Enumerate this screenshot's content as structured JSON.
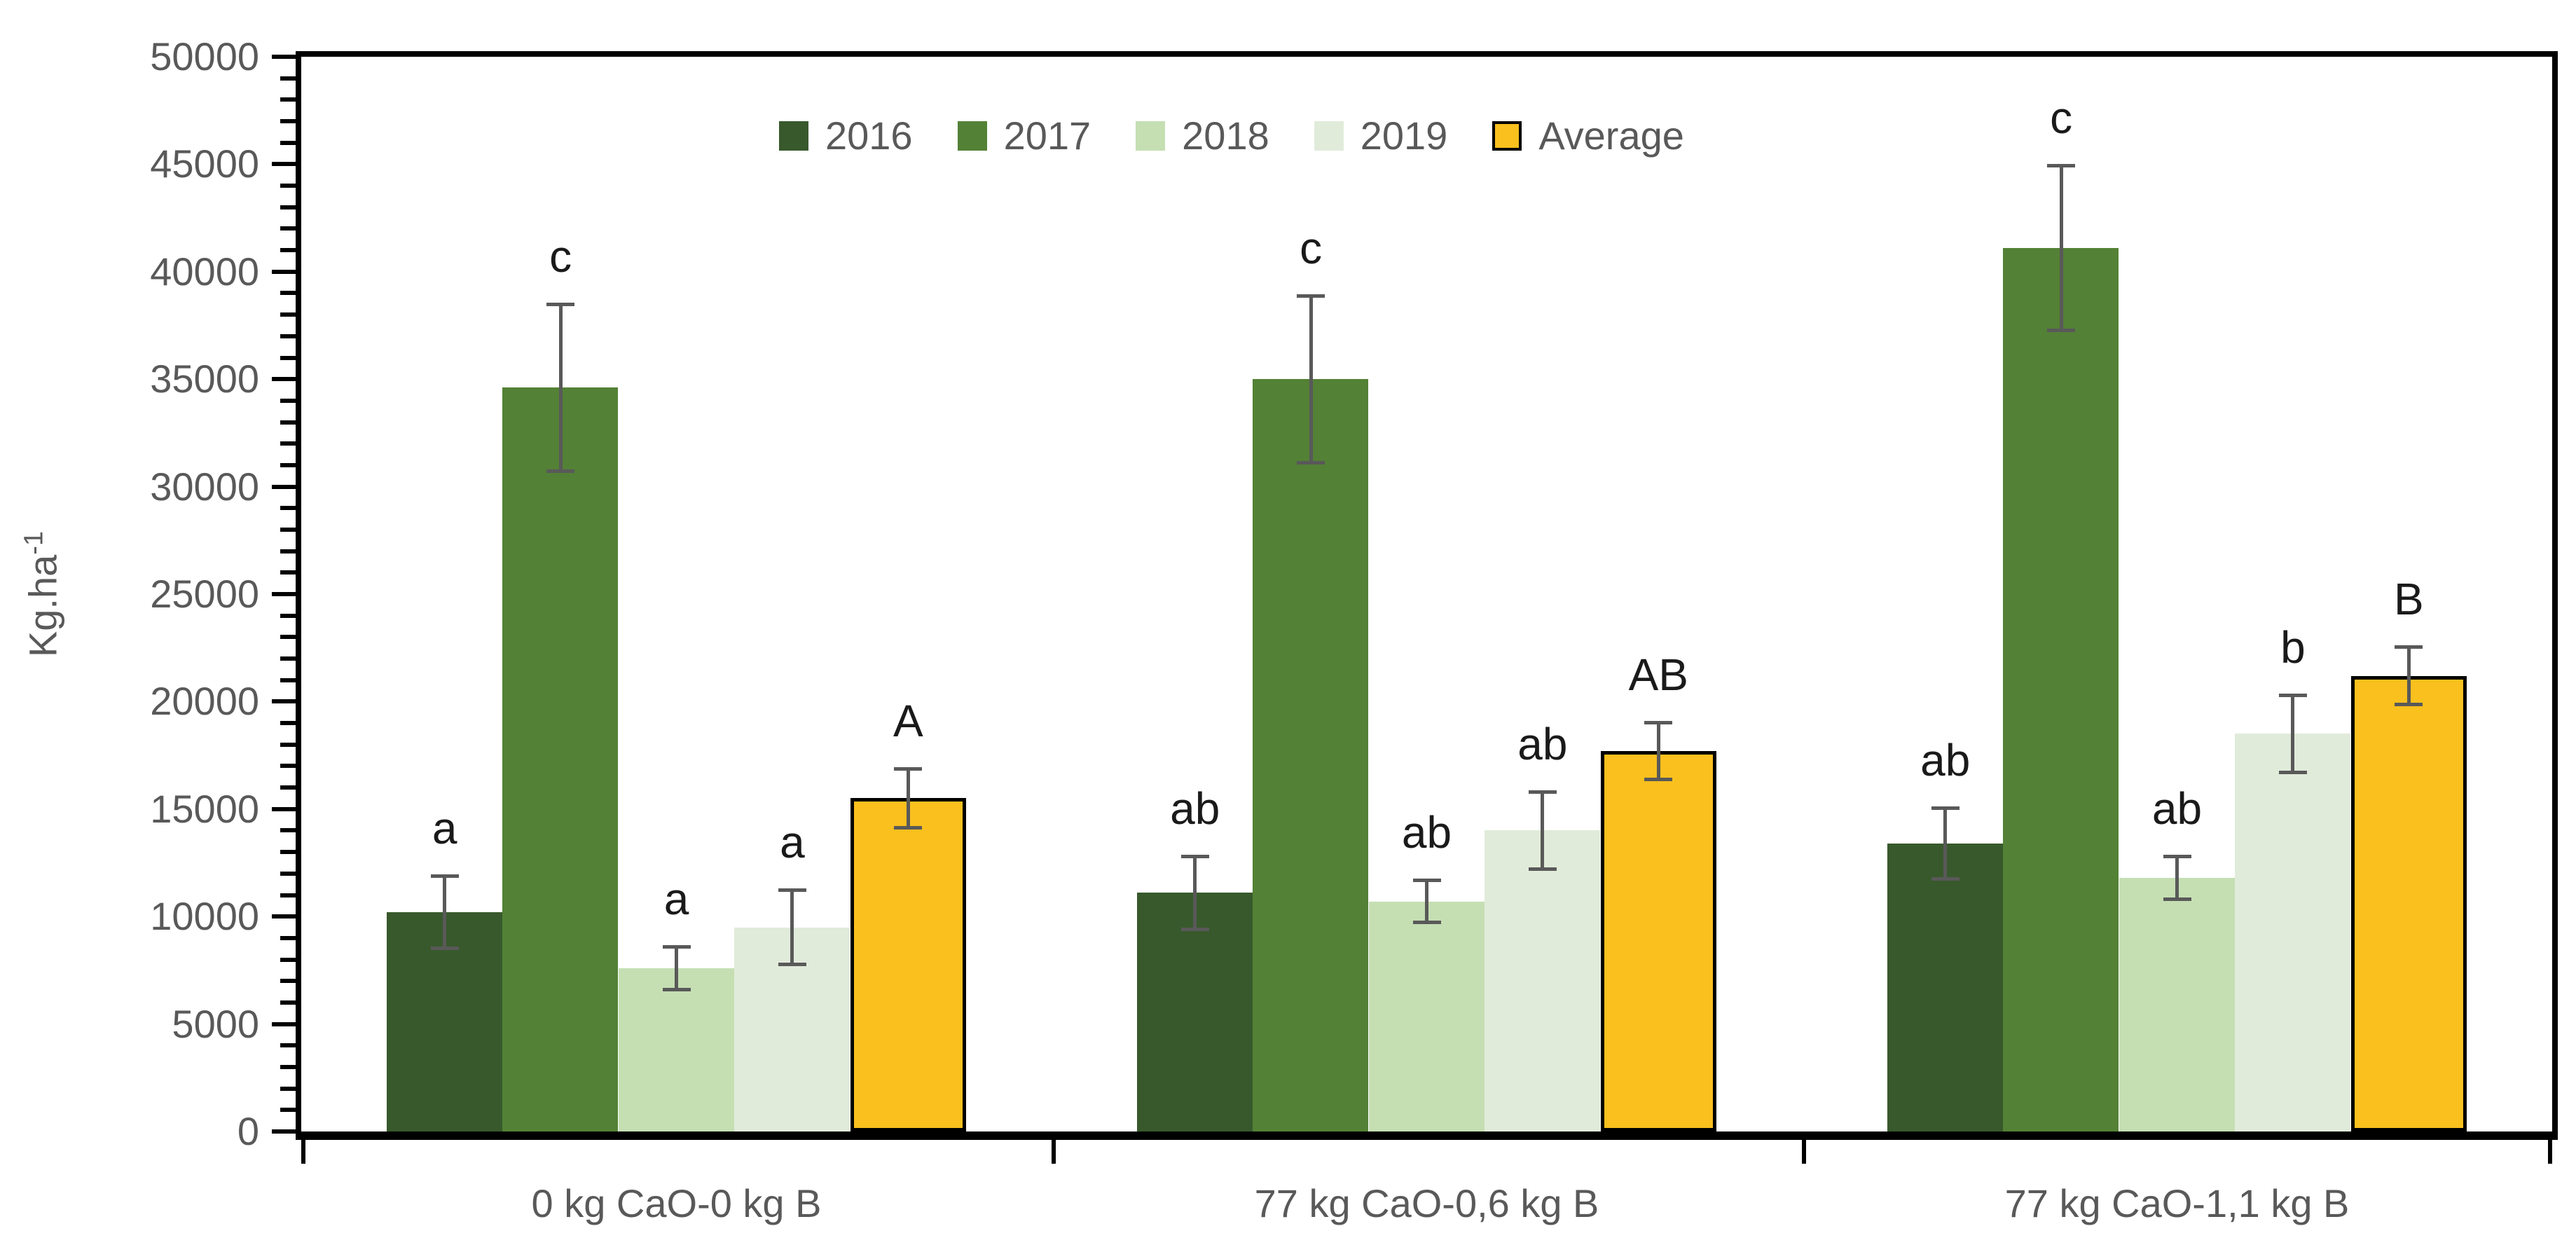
{
  "axes": {
    "ylabel_base": "Kg.ha",
    "ylabel_sup": "-1",
    "yticks": [
      0,
      5000,
      10000,
      15000,
      20000,
      25000,
      30000,
      35000,
      40000,
      45000,
      50000
    ],
    "text_color": "#595959",
    "spine_color": "#000000",
    "error_bar_color": "#595959"
  },
  "chart_data": {
    "type": "bar",
    "title": "",
    "xlabel": "",
    "ylabel": "Kg.ha-1",
    "ylim": [
      0,
      50000
    ],
    "ytick_step_major": 5000,
    "ytick_step_minor": 1000,
    "grid": false,
    "legend_position": "top-center",
    "categories": [
      "0 kg CaO-0 kg B",
      "77 kg CaO-0,6 kg B",
      "77 kg CaO-1,1 kg B"
    ],
    "series": [
      {
        "name": "2016",
        "color": "#38592C",
        "values": [
          10200,
          11100,
          13400
        ],
        "errors": [
          1700,
          1700,
          1650
        ],
        "letters": [
          "a",
          "ab",
          "ab"
        ]
      },
      {
        "name": "2017",
        "color": "#538135",
        "values": [
          34600,
          35000,
          41100
        ],
        "errors": [
          3900,
          3900,
          3850
        ],
        "letters": [
          "c",
          "c",
          "c"
        ]
      },
      {
        "name": "2018",
        "color": "#C5DFB3",
        "values": [
          7600,
          10700,
          11800
        ],
        "errors": [
          1000,
          1000,
          1000
        ],
        "letters": [
          "a",
          "ab",
          "ab"
        ]
      },
      {
        "name": "2019",
        "color": "#E1EBDA",
        "values": [
          9500,
          14000,
          18500
        ],
        "errors": [
          1750,
          1800,
          1800
        ],
        "letters": [
          "a",
          "ab",
          "b"
        ]
      },
      {
        "name": "Average",
        "color": "#F9C01E",
        "border_color": "#000000",
        "values": [
          15500,
          17700,
          21200
        ],
        "errors": [
          1400,
          1350,
          1350
        ],
        "letters": [
          "A",
          "AB",
          "B"
        ]
      }
    ]
  }
}
